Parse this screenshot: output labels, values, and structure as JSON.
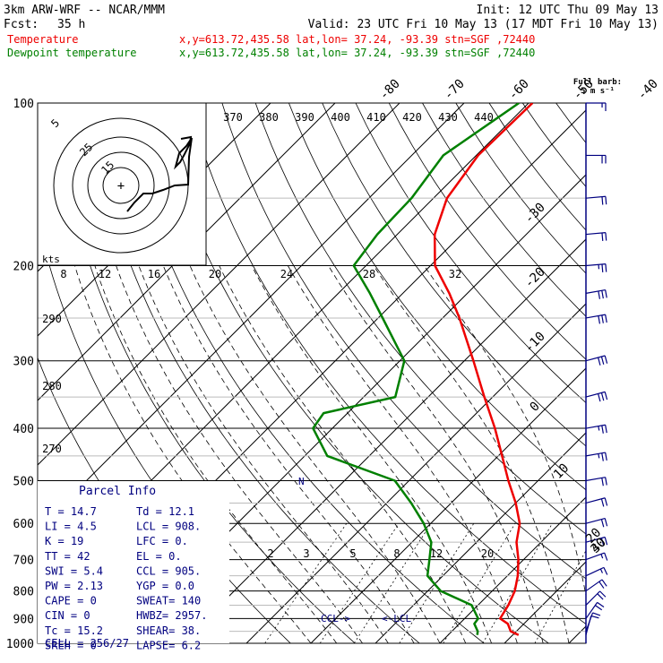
{
  "header": {
    "model": "3km ARW-WRF -- NCAR/MMM",
    "init": "Init: 12 UTC Thu 09 May 13",
    "fcst_label": "Fcst:",
    "fcst_value": "35 h",
    "valid": "Valid: 23 UTC Fri 10 May 13 (17 MDT Fri 10 May 13)",
    "temp_label": "Temperature",
    "dew_label": "Dewpoint temperature",
    "loc_info": "x,y=613.72,435.58   lat,lon= 37.24, -93.39   stn=SGF ,72440"
  },
  "colors": {
    "temperature": "#ee0000",
    "dewpoint": "#008000",
    "wind": "#000080",
    "grid": "#000000"
  },
  "pressure_labels": [
    "100",
    "200",
    "300",
    "400",
    "500",
    "600",
    "700",
    "800",
    "900",
    "1000"
  ],
  "top_isotherm_labels": [
    "-80",
    "-70",
    "-60",
    "-50",
    "-40"
  ],
  "right_isotherm_labels": [
    "-30",
    "-20",
    "-10",
    "0",
    "10",
    "20",
    "30",
    "40"
  ],
  "theta_labels": [
    "370",
    "380",
    "390",
    "400",
    "410",
    "420",
    "430",
    "440"
  ],
  "theta_left_labels": [
    "290",
    "280",
    "270"
  ],
  "mixing_ratio_labels": [
    "2",
    "3",
    "5",
    "8",
    "12",
    "20"
  ],
  "hodo_speed_labels": [
    "8",
    "12",
    "16",
    "20",
    "24",
    "28",
    "32"
  ],
  "hodo_units": "kts",
  "hodo_ring_labels": [
    "5",
    "25",
    "15"
  ],
  "hodo_center": "+",
  "barb_legend": {
    "title": "Full barb:",
    "value": "5 m s⁻¹"
  },
  "lcl_labels": {
    "ccl": "CCL->",
    "lcl": "<-LCL"
  },
  "marker_n": "N",
  "parcel_info": {
    "title": "Parcel Info",
    "rows": [
      [
        "T  =    14.7",
        "Td =  12.1"
      ],
      [
        "LI =     4.5",
        "LCL =  908."
      ],
      [
        "K  =      19",
        "LFC =    0."
      ],
      [
        "TT =      42",
        "EL  =    0."
      ],
      [
        "SWI =    5.4",
        "CCL =  905."
      ],
      [
        "PW =    2.13",
        "YGP =   0.0"
      ],
      [
        "CAPE =     0",
        "SWEAT=  140"
      ],
      [
        "CIN =      0",
        "HWBZ= 2957."
      ],
      [
        "Tc =    15.2",
        "SHEAR=  38."
      ],
      [
        "SREH =     0",
        "LAPSE=  6.2"
      ]
    ],
    "cell": "CELL = 256/27"
  },
  "chart_data": {
    "type": "line",
    "diagram": "skew-T log-p",
    "y_axis": "pressure (hPa), log scale, inverted",
    "ylim": [
      1000,
      100
    ],
    "skew": "isotherms skewed 45 degrees",
    "series": [
      {
        "name": "Temperature",
        "points": [
          [
            965,
            20.9
          ],
          [
            950,
            19.1
          ],
          [
            920,
            17.5
          ],
          [
            900,
            15.5
          ],
          [
            850,
            14.7
          ],
          [
            800,
            13.5
          ],
          [
            750,
            11.6
          ],
          [
            700,
            9.2
          ],
          [
            650,
            6.2
          ],
          [
            600,
            3.8
          ],
          [
            550,
            0.0
          ],
          [
            500,
            -4.6
          ],
          [
            450,
            -9.4
          ],
          [
            400,
            -14.8
          ],
          [
            350,
            -21.3
          ],
          [
            300,
            -28.6
          ],
          [
            250,
            -37.4
          ],
          [
            225,
            -42.8
          ],
          [
            200,
            -49.3
          ],
          [
            175,
            -54.2
          ],
          [
            150,
            -57.9
          ],
          [
            125,
            -59.7
          ],
          [
            100,
            -59.4
          ]
        ]
      },
      {
        "name": "Dewpoint temperature",
        "points": [
          [
            965,
            14.5
          ],
          [
            950,
            14.0
          ],
          [
            920,
            12.3
          ],
          [
            900,
            12.1
          ],
          [
            850,
            9.0
          ],
          [
            800,
            2.0
          ],
          [
            750,
            -2.4
          ],
          [
            700,
            -4.6
          ],
          [
            650,
            -7.0
          ],
          [
            600,
            -11.1
          ],
          [
            550,
            -16.2
          ],
          [
            500,
            -22.2
          ],
          [
            450,
            -36.5
          ],
          [
            400,
            -43.0
          ],
          [
            375,
            -43.7
          ],
          [
            350,
            -35.1
          ],
          [
            300,
            -39.3
          ],
          [
            250,
            -49.3
          ],
          [
            225,
            -55.1
          ],
          [
            200,
            -61.9
          ],
          [
            175,
            -63.1
          ],
          [
            150,
            -63.4
          ],
          [
            125,
            -65.1
          ],
          [
            100,
            -61.5
          ]
        ]
      }
    ],
    "wind_barbs": [
      {
        "p": 965,
        "dir": 195,
        "spd": 8
      },
      {
        "p": 950,
        "dir": 200,
        "spd": 12
      },
      {
        "p": 900,
        "dir": 215,
        "spd": 18
      },
      {
        "p": 850,
        "dir": 225,
        "spd": 20
      },
      {
        "p": 800,
        "dir": 235,
        "spd": 18
      },
      {
        "p": 750,
        "dir": 245,
        "spd": 16
      },
      {
        "p": 700,
        "dir": 250,
        "spd": 16
      },
      {
        "p": 650,
        "dir": 255,
        "spd": 18
      },
      {
        "p": 600,
        "dir": 255,
        "spd": 20
      },
      {
        "p": 550,
        "dir": 255,
        "spd": 22
      },
      {
        "p": 500,
        "dir": 260,
        "spd": 22
      },
      {
        "p": 450,
        "dir": 260,
        "spd": 25
      },
      {
        "p": 400,
        "dir": 260,
        "spd": 27
      },
      {
        "p": 350,
        "dir": 255,
        "spd": 30
      },
      {
        "p": 300,
        "dir": 255,
        "spd": 32
      },
      {
        "p": 250,
        "dir": 260,
        "spd": 30
      },
      {
        "p": 225,
        "dir": 260,
        "spd": 28
      },
      {
        "p": 200,
        "dir": 265,
        "spd": 26
      },
      {
        "p": 175,
        "dir": 265,
        "spd": 22
      },
      {
        "p": 150,
        "dir": 265,
        "spd": 20
      },
      {
        "p": 125,
        "dir": 270,
        "spd": 18
      },
      {
        "p": 100,
        "dir": 270,
        "spd": 16
      }
    ],
    "hodograph_trace": [
      [
        202,
        155
      ],
      [
        213,
        153
      ],
      [
        212,
        160
      ],
      [
        206,
        172
      ],
      [
        201,
        181
      ],
      [
        196,
        186
      ],
      [
        200,
        171
      ],
      [
        208,
        163
      ],
      [
        214,
        154
      ],
      [
        211,
        175
      ],
      [
        210,
        206
      ],
      [
        195,
        207
      ],
      [
        182,
        212
      ],
      [
        170,
        216
      ],
      [
        160,
        216
      ],
      [
        150,
        226
      ],
      [
        142,
        236
      ]
    ]
  }
}
